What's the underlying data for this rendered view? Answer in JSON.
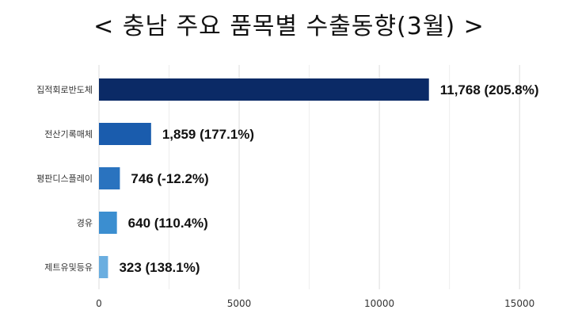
{
  "chart_data": {
    "type": "bar",
    "orientation": "horizontal",
    "title": "< 충남 주요 품목별 수출동향(3월) >",
    "categories": [
      "집적회로반도체",
      "전산기록매체",
      "평판디스플레이",
      "경유",
      "제트유및등유"
    ],
    "values": [
      11768,
      1859,
      746,
      640,
      323
    ],
    "data_labels": [
      "11,768 (205.8%)",
      "1,859 (177.1%)",
      "746 (-12.2%)",
      "640 (110.4%)",
      "323 (138.1%)"
    ],
    "colors": [
      "#0b2a66",
      "#1a5cad",
      "#2a73bf",
      "#3b8ed0",
      "#6aaee0"
    ],
    "xlim": [
      0,
      17000
    ],
    "x_ticks": [
      0,
      5000,
      10000,
      15000
    ],
    "grid": true,
    "legend": "none"
  }
}
